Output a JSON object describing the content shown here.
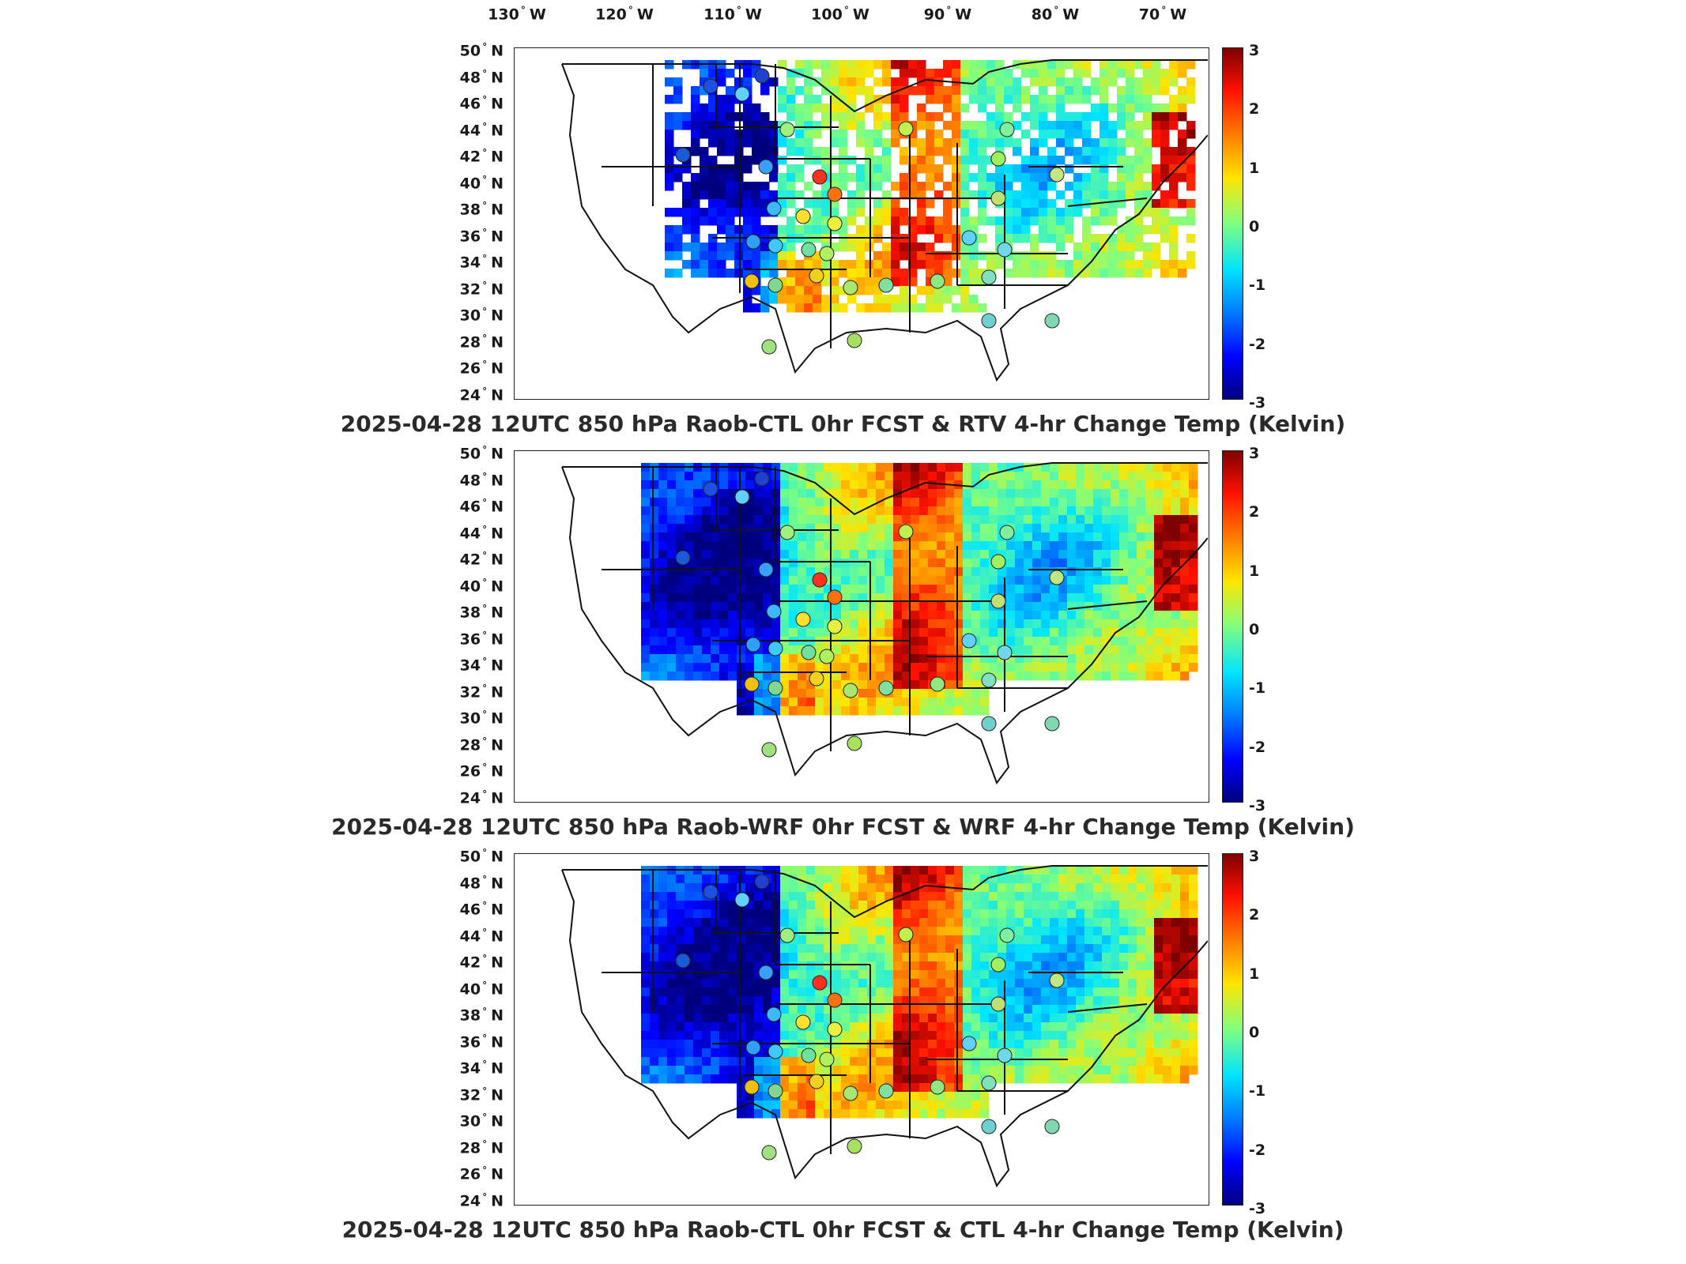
{
  "longitude_labels": [
    "130",
    "120",
    "110",
    "100",
    "90",
    "80",
    "70"
  ],
  "longitude_suffix": "W",
  "latitude_labels": [
    "50",
    "48",
    "46",
    "44",
    "42",
    "40",
    "38",
    "36",
    "34",
    "32",
    "30",
    "28",
    "26",
    "24"
  ],
  "latitude_suffix": "N",
  "degree_symbol": "°",
  "colorbar": {
    "ticks": [
      "3",
      "2",
      "1",
      "0",
      "-1",
      "-2",
      "-3"
    ],
    "colors": [
      "#00007f",
      "#0000ff",
      "#007fff",
      "#00e5ff",
      "#7fff7f",
      "#ffe500",
      "#ff7f00",
      "#ff1000",
      "#7f0000"
    ]
  },
  "panels": [
    {
      "title": "2025-04-28 12UTC 850 hPa Raob-CTL 0hr FCST & RTV 4-hr Change Temp (Kelvin)",
      "variant": "rtv"
    },
    {
      "title": "2025-04-28 12UTC 850 hPa Raob-WRF 0hr FCST & WRF 4-hr Change Temp (Kelvin)",
      "variant": "wrf"
    },
    {
      "title": "2025-04-28 12UTC 850 hPa Raob-CTL 0hr FCST & CTL 4-hr Change Temp (Kelvin)",
      "variant": "ctl"
    }
  ]
}
